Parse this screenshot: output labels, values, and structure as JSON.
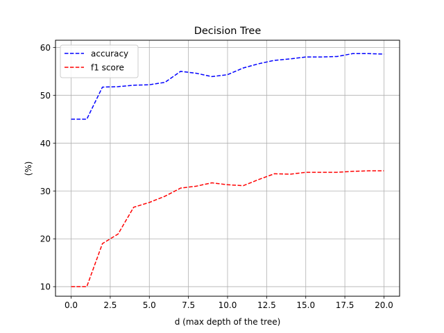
{
  "chart_data": {
    "type": "line",
    "title": "Decision Tree",
    "xlabel": "d (max depth of the tree)",
    "ylabel": "(%)",
    "xlim": [
      -1,
      21
    ],
    "ylim": [
      8,
      61.5
    ],
    "xticks": [
      0,
      2.5,
      5,
      7.5,
      10,
      12.5,
      15,
      17.5,
      20
    ],
    "xtick_labels": [
      "0.0",
      "2.5",
      "5.0",
      "7.5",
      "10.0",
      "12.5",
      "15.0",
      "17.5",
      "20.0"
    ],
    "yticks": [
      10,
      20,
      30,
      40,
      50,
      60
    ],
    "ytick_labels": [
      "10",
      "20",
      "30",
      "40",
      "50",
      "60"
    ],
    "grid": true,
    "legend_position": "top-left",
    "x": [
      0,
      1,
      2,
      3,
      4,
      5,
      6,
      7,
      8,
      9,
      10,
      11,
      12,
      13,
      14,
      15,
      16,
      17,
      18,
      19,
      20
    ],
    "series": [
      {
        "name": "accuracy",
        "color": "#0000ff",
        "line_style": "dashed",
        "values": [
          45.0,
          45.0,
          51.7,
          51.8,
          52.1,
          52.2,
          52.7,
          55.0,
          54.6,
          53.9,
          54.3,
          55.7,
          56.6,
          57.3,
          57.6,
          58.0,
          58.0,
          58.1,
          58.7,
          58.7,
          58.6
        ]
      },
      {
        "name": "f1 score",
        "color": "#ff0000",
        "line_style": "dashed",
        "values": [
          10.0,
          10.0,
          19.0,
          21.0,
          26.6,
          27.6,
          28.9,
          30.6,
          31.0,
          31.7,
          31.3,
          31.1,
          32.4,
          33.6,
          33.5,
          33.9,
          33.9,
          33.9,
          34.1,
          34.2,
          34.2
        ]
      }
    ]
  }
}
